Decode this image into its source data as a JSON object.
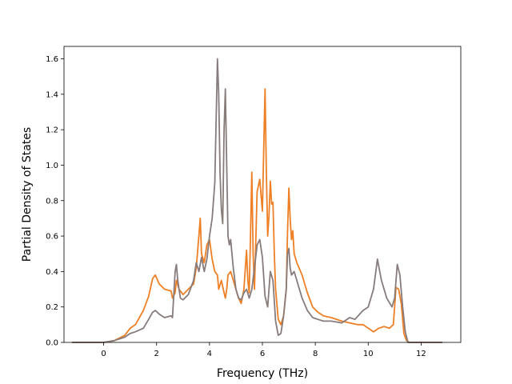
{
  "chart_data": {
    "type": "line",
    "title": "",
    "xlabel": "Frequency (THz)",
    "ylabel": "Partial Density of States",
    "xlim": [
      -1.5,
      13.5
    ],
    "ylim": [
      0.0,
      1.67
    ],
    "xticks": [
      0,
      2,
      4,
      6,
      8,
      10,
      12
    ],
    "yticks": [
      0.0,
      0.2,
      0.4,
      0.6,
      0.8,
      1.0,
      1.2,
      1.4,
      1.6
    ],
    "grid": false,
    "legend": "none",
    "series": [
      {
        "color": "#ee7f25",
        "x": [
          -1.2,
          0.0,
          0.4,
          0.8,
          1.0,
          1.2,
          1.5,
          1.7,
          1.85,
          1.95,
          2.1,
          2.3,
          2.55,
          2.6,
          2.7,
          2.75,
          2.85,
          3.0,
          3.2,
          3.4,
          3.5,
          3.6,
          3.65,
          3.7,
          3.8,
          3.9,
          4.0,
          4.1,
          4.2,
          4.3,
          4.35,
          4.45,
          4.55,
          4.6,
          4.65,
          4.7,
          4.8,
          4.9,
          5.0,
          5.1,
          5.2,
          5.3,
          5.4,
          5.45,
          5.5,
          5.55,
          5.6,
          5.65,
          5.7,
          5.8,
          5.9,
          6.0,
          6.05,
          6.1,
          6.15,
          6.2,
          6.25,
          6.3,
          6.35,
          6.4,
          6.45,
          6.5,
          6.6,
          6.7,
          6.8,
          6.9,
          6.95,
          7.0,
          7.05,
          7.1,
          7.15,
          7.2,
          7.3,
          7.5,
          7.7,
          7.9,
          8.1,
          8.3,
          8.6,
          9.0,
          9.3,
          9.6,
          9.8,
          10.0,
          10.2,
          10.4,
          10.6,
          10.8,
          10.95,
          11.05,
          11.15,
          11.25,
          11.35,
          11.45,
          11.55,
          12.0,
          12.8
        ],
        "y": [
          0.0,
          0.0,
          0.01,
          0.04,
          0.08,
          0.1,
          0.18,
          0.26,
          0.36,
          0.38,
          0.33,
          0.3,
          0.29,
          0.25,
          0.28,
          0.35,
          0.3,
          0.27,
          0.3,
          0.33,
          0.42,
          0.6,
          0.7,
          0.5,
          0.45,
          0.55,
          0.58,
          0.47,
          0.4,
          0.38,
          0.3,
          0.35,
          0.28,
          0.25,
          0.3,
          0.38,
          0.4,
          0.35,
          0.3,
          0.25,
          0.22,
          0.3,
          0.52,
          0.35,
          0.28,
          0.6,
          0.96,
          0.5,
          0.3,
          0.85,
          0.92,
          0.74,
          1.1,
          1.43,
          0.95,
          0.6,
          0.72,
          0.91,
          0.78,
          0.79,
          0.5,
          0.3,
          0.13,
          0.1,
          0.15,
          0.3,
          0.62,
          0.87,
          0.7,
          0.58,
          0.63,
          0.5,
          0.45,
          0.38,
          0.28,
          0.2,
          0.17,
          0.15,
          0.14,
          0.12,
          0.11,
          0.1,
          0.1,
          0.08,
          0.06,
          0.08,
          0.09,
          0.08,
          0.1,
          0.31,
          0.3,
          0.22,
          0.05,
          0.01,
          0.0,
          0.0,
          0.0
        ]
      },
      {
        "color": "#877b7b",
        "x": [
          -1.2,
          0.0,
          0.4,
          0.8,
          1.0,
          1.2,
          1.5,
          1.7,
          1.85,
          1.95,
          2.1,
          2.3,
          2.55,
          2.6,
          2.7,
          2.75,
          2.8,
          2.9,
          3.0,
          3.2,
          3.4,
          3.5,
          3.6,
          3.7,
          3.8,
          3.9,
          4.0,
          4.1,
          4.2,
          4.3,
          4.35,
          4.4,
          4.45,
          4.5,
          4.55,
          4.6,
          4.65,
          4.7,
          4.75,
          4.8,
          4.9,
          5.0,
          5.1,
          5.2,
          5.3,
          5.4,
          5.5,
          5.6,
          5.7,
          5.8,
          5.9,
          6.0,
          6.1,
          6.2,
          6.3,
          6.4,
          6.5,
          6.6,
          6.7,
          6.8,
          6.9,
          6.95,
          7.0,
          7.05,
          7.1,
          7.2,
          7.3,
          7.5,
          7.7,
          7.9,
          8.1,
          8.3,
          8.6,
          9.0,
          9.3,
          9.5,
          9.8,
          10.0,
          10.2,
          10.35,
          10.5,
          10.7,
          10.9,
          11.0,
          11.1,
          11.2,
          11.3,
          11.4,
          11.5,
          12.0,
          12.8
        ],
        "y": [
          0.0,
          0.0,
          0.01,
          0.03,
          0.05,
          0.06,
          0.08,
          0.13,
          0.17,
          0.18,
          0.16,
          0.14,
          0.15,
          0.14,
          0.4,
          0.44,
          0.35,
          0.25,
          0.24,
          0.27,
          0.35,
          0.45,
          0.4,
          0.48,
          0.4,
          0.47,
          0.6,
          0.7,
          0.9,
          1.6,
          1.4,
          0.95,
          0.75,
          0.67,
          1.2,
          1.43,
          1.0,
          0.6,
          0.55,
          0.58,
          0.42,
          0.3,
          0.25,
          0.24,
          0.28,
          0.3,
          0.25,
          0.3,
          0.42,
          0.55,
          0.58,
          0.48,
          0.26,
          0.2,
          0.4,
          0.35,
          0.12,
          0.04,
          0.05,
          0.15,
          0.3,
          0.5,
          0.53,
          0.42,
          0.38,
          0.4,
          0.35,
          0.25,
          0.18,
          0.14,
          0.13,
          0.12,
          0.12,
          0.11,
          0.14,
          0.13,
          0.18,
          0.2,
          0.3,
          0.47,
          0.35,
          0.25,
          0.2,
          0.25,
          0.44,
          0.38,
          0.2,
          0.06,
          0.0,
          0.0,
          0.0
        ]
      }
    ]
  }
}
